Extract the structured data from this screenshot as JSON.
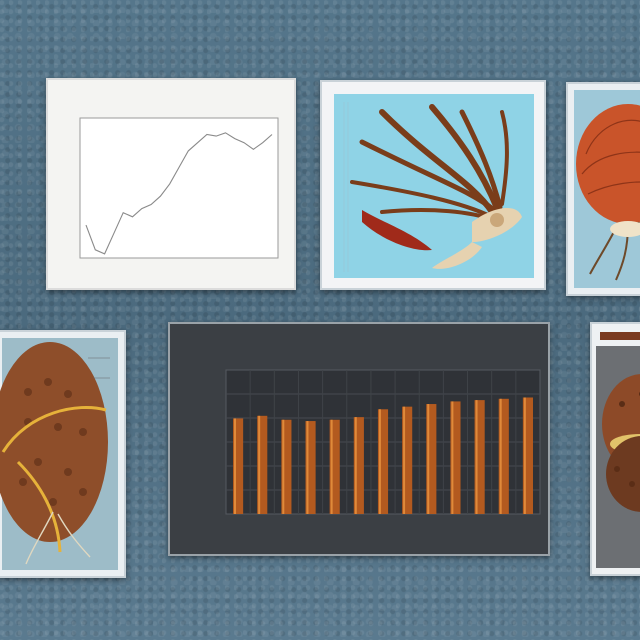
{
  "panels": {
    "line_chart": {
      "title": "",
      "y_ticks": [
        "",
        "",
        "",
        ""
      ],
      "x_ticks": [
        "",
        "",
        "",
        ""
      ],
      "line_color": "#8a8a8a"
    },
    "bar_chart": {
      "title": "",
      "x_label": "",
      "bar_color": "#b35a1f",
      "bar_highlight": "#e08a3a"
    }
  },
  "chart_data": [
    {
      "type": "line",
      "x": [
        0,
        1,
        2,
        3,
        4,
        5,
        6,
        7,
        8,
        9,
        10,
        11,
        12,
        13,
        14,
        15,
        16,
        17,
        18,
        19,
        20
      ],
      "series": [
        {
          "values": [
            40,
            10,
            5,
            30,
            55,
            50,
            60,
            65,
            75,
            90,
            110,
            130,
            140,
            150,
            148,
            152,
            145,
            140,
            132,
            140,
            150
          ]
        }
      ],
      "title": "",
      "xlabel": "",
      "ylabel": "",
      "ylim": [
        0,
        170
      ],
      "grid": false
    },
    {
      "type": "bar",
      "categories": [
        "",
        "",
        "",
        "",
        "",
        "",
        "",
        "",
        "",
        "",
        "",
        "",
        ""
      ],
      "values": [
        73,
        75,
        72,
        71,
        72,
        74,
        80,
        82,
        84,
        86,
        87,
        88,
        89
      ],
      "title": "",
      "xlabel": "",
      "ylabel": "",
      "ylim": [
        0,
        110
      ],
      "grid": true
    }
  ]
}
